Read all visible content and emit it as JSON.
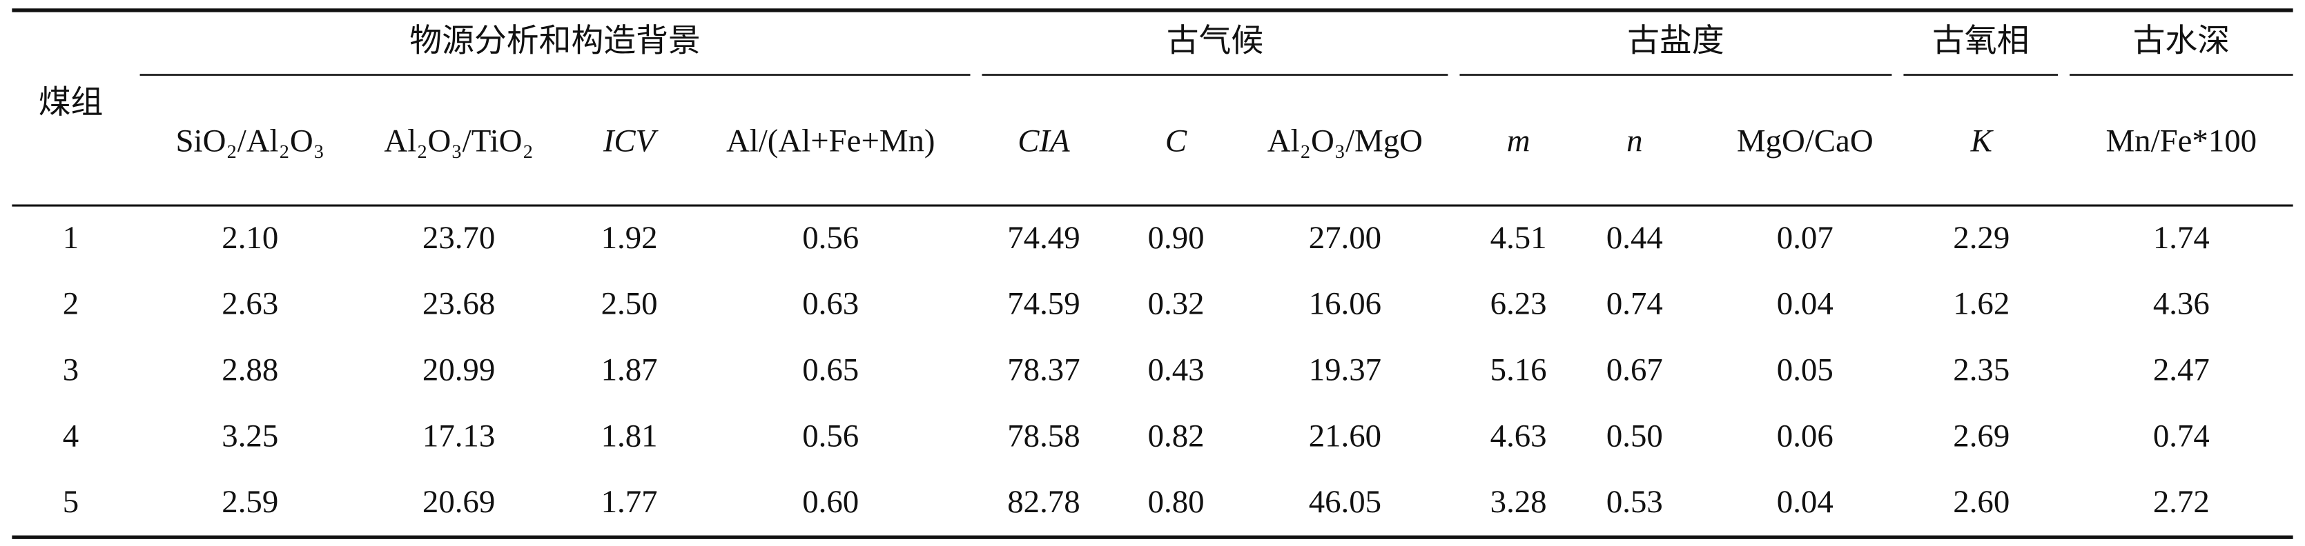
{
  "table": {
    "row_header": "煤组",
    "groups": [
      {
        "label": "物源分析和构造背景",
        "columns": [
          "SiO₂/Al₂O₃",
          "Al₂O₃/TiO₂",
          "ICV",
          "Al/(Al+Fe+Mn)"
        ]
      },
      {
        "label": "古气候",
        "columns": [
          "CIA",
          "C",
          "Al₂O₃/MgO"
        ]
      },
      {
        "label": "古盐度",
        "columns": [
          "m",
          "n",
          "MgO/CaO"
        ]
      },
      {
        "label": "古氧相",
        "columns": [
          "K"
        ]
      },
      {
        "label": "古水深",
        "columns": [
          "Mn/Fe*100"
        ]
      }
    ],
    "rows": [
      [
        "1",
        "2.10",
        "23.70",
        "1.92",
        "0.56",
        "74.49",
        "0.90",
        "27.00",
        "4.51",
        "0.44",
        "0.07",
        "2.29",
        "1.74"
      ],
      [
        "2",
        "2.63",
        "23.68",
        "2.50",
        "0.63",
        "74.59",
        "0.32",
        "16.06",
        "6.23",
        "0.74",
        "0.04",
        "1.62",
        "4.36"
      ],
      [
        "3",
        "2.88",
        "20.99",
        "1.87",
        "0.65",
        "78.37",
        "0.43",
        "19.37",
        "5.16",
        "0.67",
        "0.05",
        "2.35",
        "2.47"
      ],
      [
        "4",
        "3.25",
        "17.13",
        "1.81",
        "0.56",
        "78.58",
        "0.82",
        "21.60",
        "4.63",
        "0.50",
        "0.06",
        "2.69",
        "0.74"
      ],
      [
        "5",
        "2.59",
        "20.69",
        "1.77",
        "0.60",
        "82.78",
        "0.80",
        "46.05",
        "3.28",
        "0.53",
        "0.04",
        "2.60",
        "2.72"
      ]
    ]
  }
}
